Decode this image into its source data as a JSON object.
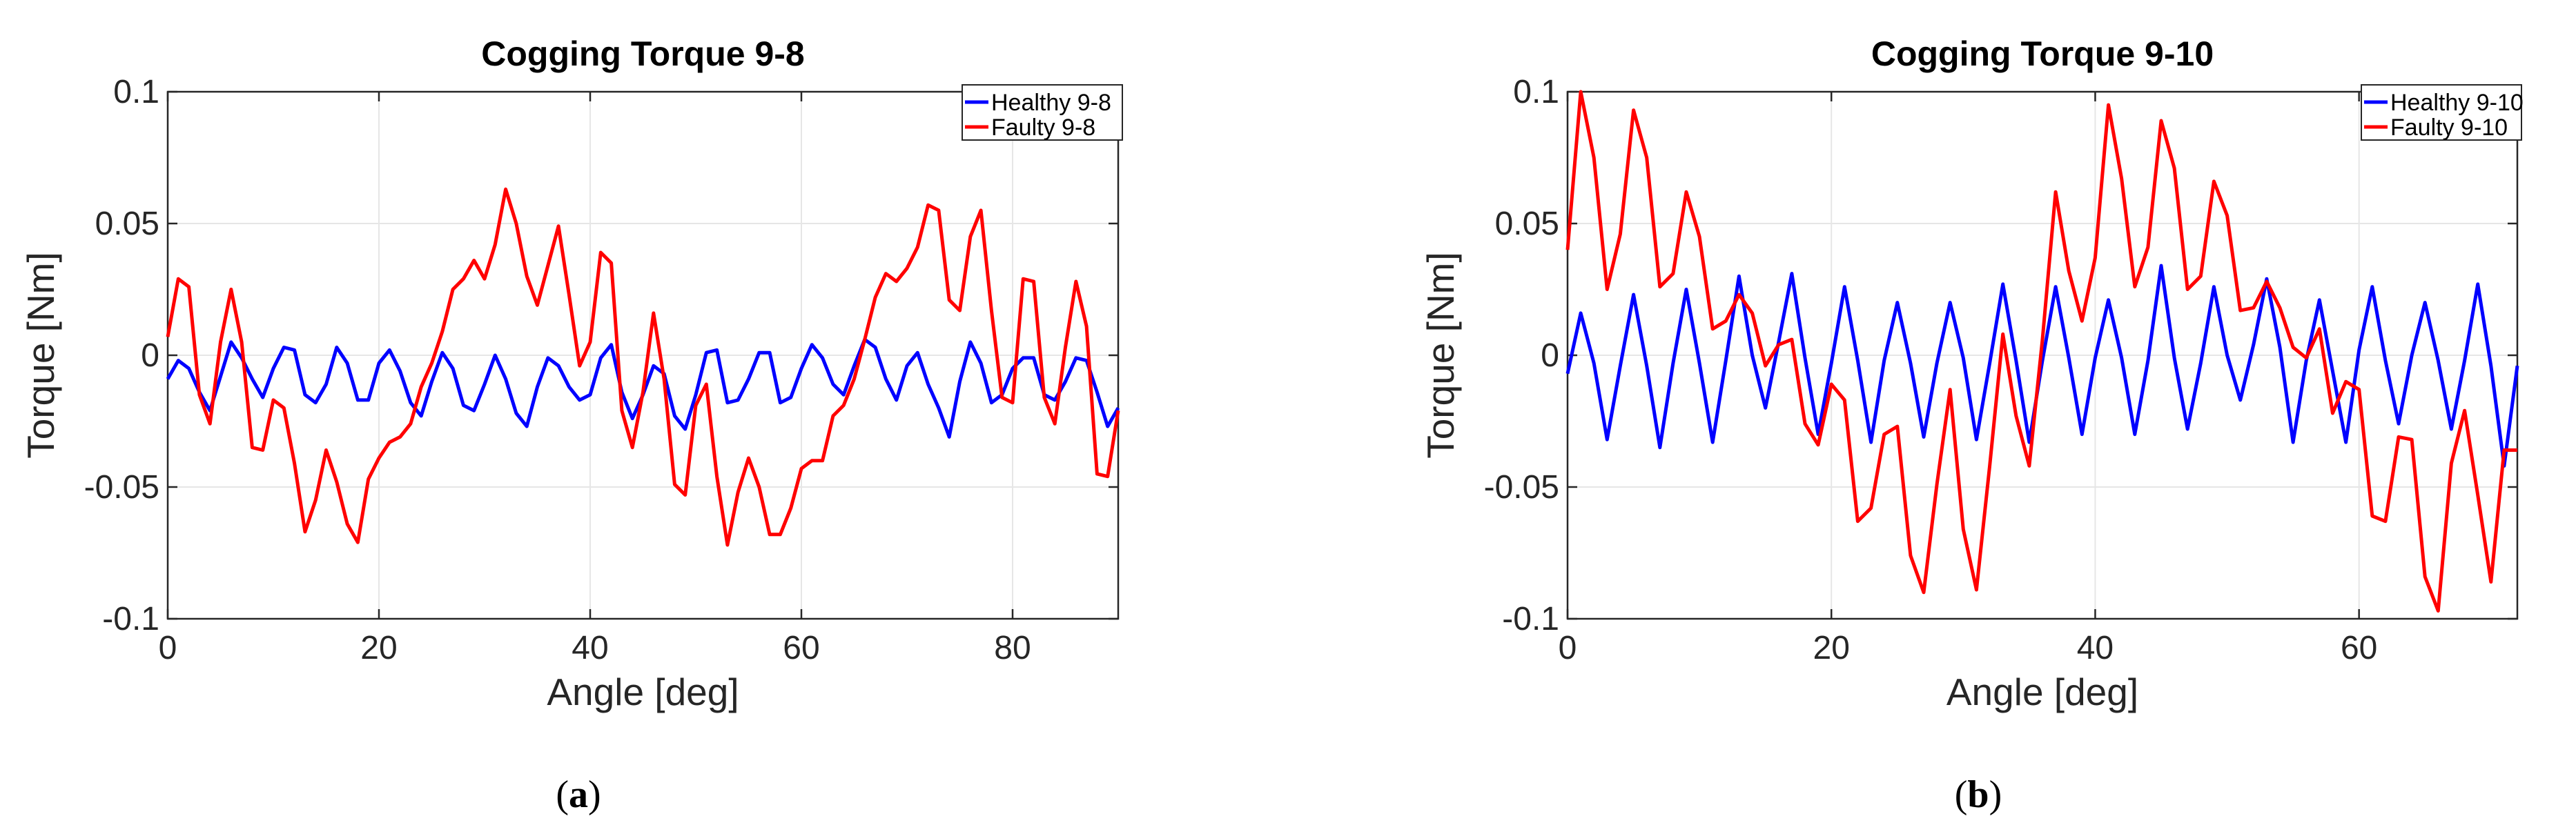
{
  "chart_data": [
    {
      "type": "line",
      "title": "Cogging Torque 9-8",
      "xlabel": "Angle [deg]",
      "ylabel": "Torque [Nm]",
      "xlim": [
        0,
        90
      ],
      "ylim": [
        -0.1,
        0.1
      ],
      "xticks": [
        0,
        20,
        40,
        60,
        80
      ],
      "xtick_labels": [
        "0",
        "20",
        "40",
        "60",
        "80"
      ],
      "yticks": [
        -0.1,
        -0.05,
        0,
        0.05,
        0.1
      ],
      "ytick_labels": [
        "-0.1",
        "-0.05",
        "0",
        "0.05",
        "0.1"
      ],
      "grid": true,
      "legend_position": "top-right",
      "caption_prefix": "(",
      "caption_letter": "a",
      "caption_suffix": ")",
      "series": [
        {
          "name": "Healthy 9-8",
          "color": "#0000ff",
          "x": [
            0,
            1,
            2,
            3,
            4,
            5,
            6,
            7,
            8,
            9,
            10,
            11,
            12,
            13,
            14,
            15,
            16,
            17,
            18,
            19,
            20,
            21,
            22,
            23,
            24,
            25,
            26,
            27,
            28,
            29,
            30,
            31,
            32,
            33,
            34,
            35,
            36,
            37,
            38,
            39,
            40,
            41,
            42,
            43,
            44,
            45,
            46,
            47,
            48,
            49,
            50,
            51,
            52,
            53,
            54,
            55,
            56,
            57,
            58,
            59,
            60,
            61,
            62,
            63,
            64,
            65,
            66,
            67,
            68,
            69,
            70,
            71,
            72,
            73,
            74,
            75,
            76,
            77,
            78,
            79,
            80,
            81,
            82,
            83,
            84,
            85,
            86,
            87,
            88,
            89,
            90
          ],
          "values": [
            -0.009,
            -0.002,
            -0.005,
            -0.014,
            -0.021,
            -0.008,
            0.005,
            -0.001,
            -0.009,
            -0.016,
            -0.005,
            0.003,
            0.002,
            -0.015,
            -0.018,
            -0.011,
            0.003,
            -0.003,
            -0.017,
            -0.017,
            -0.003,
            0.002,
            -0.006,
            -0.018,
            -0.023,
            -0.01,
            0.001,
            -0.005,
            -0.019,
            -0.021,
            -0.011,
            0.0,
            -0.009,
            -0.022,
            -0.027,
            -0.012,
            -0.001,
            -0.004,
            -0.012,
            -0.017,
            -0.015,
            -0.001,
            0.004,
            -0.014,
            -0.024,
            -0.015,
            -0.004,
            -0.007,
            -0.023,
            -0.028,
            -0.015,
            0.001,
            0.002,
            -0.018,
            -0.017,
            -0.009,
            0.001,
            0.001,
            -0.018,
            -0.016,
            -0.005,
            0.004,
            -0.001,
            -0.011,
            -0.015,
            -0.004,
            0.006,
            0.003,
            -0.009,
            -0.017,
            -0.004,
            0.001,
            -0.011,
            -0.02,
            -0.031,
            -0.01,
            0.005,
            -0.003,
            -0.018,
            -0.015,
            -0.005,
            -0.001,
            -0.001,
            -0.015,
            -0.017,
            -0.01,
            -0.001,
            -0.002,
            -0.014,
            -0.027,
            -0.02
          ]
        },
        {
          "name": "Faulty 9-8",
          "color": "#ff0000",
          "x": [
            0,
            1,
            2,
            3,
            4,
            5,
            6,
            7,
            8,
            9,
            10,
            11,
            12,
            13,
            14,
            15,
            16,
            17,
            18,
            19,
            20,
            21,
            22,
            23,
            24,
            25,
            26,
            27,
            28,
            29,
            30,
            31,
            32,
            33,
            34,
            35,
            36,
            37,
            38,
            39,
            40,
            41,
            42,
            43,
            44,
            45,
            46,
            47,
            48,
            49,
            50,
            51,
            52,
            53,
            54,
            55,
            56,
            57,
            58,
            59,
            60,
            61,
            62,
            63,
            64,
            65,
            66,
            67,
            68,
            69,
            70,
            71,
            72,
            73,
            74,
            75,
            76,
            77,
            78,
            79,
            80,
            81,
            82,
            83,
            84,
            85,
            86,
            87,
            88,
            89,
            90
          ],
          "values": [
            0.007,
            0.029,
            0.026,
            -0.015,
            -0.026,
            0.005,
            0.025,
            0.005,
            -0.035,
            -0.036,
            -0.017,
            -0.02,
            -0.041,
            -0.067,
            -0.055,
            -0.036,
            -0.048,
            -0.064,
            -0.071,
            -0.047,
            -0.039,
            -0.033,
            -0.031,
            -0.026,
            -0.012,
            -0.003,
            0.009,
            0.025,
            0.029,
            0.036,
            0.029,
            0.042,
            0.063,
            0.05,
            0.03,
            0.019,
            0.034,
            0.049,
            0.023,
            -0.004,
            0.005,
            0.039,
            0.035,
            -0.021,
            -0.035,
            -0.014,
            0.016,
            -0.009,
            -0.049,
            -0.053,
            -0.019,
            -0.011,
            -0.046,
            -0.072,
            -0.052,
            -0.039,
            -0.05,
            -0.068,
            -0.068,
            -0.058,
            -0.043,
            -0.04,
            -0.04,
            -0.023,
            -0.019,
            -0.009,
            0.006,
            0.022,
            0.031,
            0.028,
            0.033,
            0.041,
            0.057,
            0.055,
            0.021,
            0.017,
            0.045,
            0.055,
            0.017,
            -0.016,
            -0.018,
            0.029,
            0.028,
            -0.016,
            -0.026,
            0.003,
            0.028,
            0.011,
            -0.045,
            -0.046,
            -0.021
          ]
        }
      ]
    },
    {
      "type": "line",
      "title": "Cogging Torque 9-10",
      "xlabel": "Angle [deg]",
      "ylabel": "Torque [Nm]",
      "xlim": [
        0,
        72
      ],
      "ylim": [
        -0.1,
        0.1
      ],
      "xticks": [
        0,
        20,
        40,
        60
      ],
      "xtick_labels": [
        "0",
        "20",
        "40",
        "60"
      ],
      "yticks": [
        -0.1,
        -0.05,
        0,
        0.05,
        0.1
      ],
      "ytick_labels": [
        "-0.1",
        "-0.05",
        "0",
        "0.05",
        "0.1"
      ],
      "grid": true,
      "legend_position": "top-right",
      "caption_prefix": "(",
      "caption_letter": "b",
      "caption_suffix": ")",
      "series": [
        {
          "name": "Healthy 9-10",
          "color": "#0000ff",
          "x": [
            0,
            1,
            2,
            3,
            4,
            5,
            6,
            7,
            8,
            9,
            10,
            11,
            12,
            13,
            14,
            15,
            16,
            17,
            18,
            19,
            20,
            21,
            22,
            23,
            24,
            25,
            26,
            27,
            28,
            29,
            30,
            31,
            32,
            33,
            34,
            35,
            36,
            37,
            38,
            39,
            40,
            41,
            42,
            43,
            44,
            45,
            46,
            47,
            48,
            49,
            50,
            51,
            52,
            53,
            54,
            55,
            56,
            57,
            58,
            59,
            60,
            61,
            62,
            63,
            64,
            65,
            66,
            67,
            68,
            69,
            70,
            71,
            72
          ],
          "values": [
            -0.007,
            0.016,
            -0.003,
            -0.032,
            -0.004,
            0.023,
            -0.004,
            -0.035,
            -0.003,
            0.025,
            -0.003,
            -0.033,
            -0.002,
            0.03,
            0.0,
            -0.02,
            0.005,
            0.031,
            -0.001,
            -0.03,
            -0.003,
            0.026,
            -0.002,
            -0.033,
            -0.002,
            0.02,
            -0.003,
            -0.031,
            -0.003,
            0.02,
            -0.001,
            -0.032,
            -0.003,
            0.027,
            -0.002,
            -0.033,
            -0.002,
            0.026,
            -0.001,
            -0.03,
            -0.001,
            0.021,
            -0.001,
            -0.03,
            -0.002,
            0.034,
            -0.001,
            -0.028,
            -0.003,
            0.026,
            0.0,
            -0.017,
            0.004,
            0.029,
            0.003,
            -0.033,
            -0.002,
            0.021,
            -0.006,
            -0.033,
            0.002,
            0.026,
            -0.002,
            -0.026,
            0.0,
            0.02,
            -0.002,
            -0.028,
            -0.002,
            0.027,
            -0.004,
            -0.042,
            -0.004
          ]
        },
        {
          "name": "Faulty 9-10",
          "color": "#ff0000",
          "x": [
            0,
            1,
            2,
            3,
            4,
            5,
            6,
            7,
            8,
            9,
            10,
            11,
            12,
            13,
            14,
            15,
            16,
            17,
            18,
            19,
            20,
            21,
            22,
            23,
            24,
            25,
            26,
            27,
            28,
            29,
            30,
            31,
            32,
            33,
            34,
            35,
            36,
            37,
            38,
            39,
            40,
            41,
            42,
            43,
            44,
            45,
            46,
            47,
            48,
            49,
            50,
            51,
            52,
            53,
            54,
            55,
            56,
            57,
            58,
            59,
            60,
            61,
            62,
            63,
            64,
            65,
            66,
            67,
            68,
            69,
            70,
            71,
            72
          ],
          "values": [
            0.04,
            0.1,
            0.075,
            0.025,
            0.046,
            0.093,
            0.075,
            0.026,
            0.031,
            0.062,
            0.045,
            0.01,
            0.013,
            0.023,
            0.016,
            -0.004,
            0.004,
            0.006,
            -0.026,
            -0.034,
            -0.011,
            -0.017,
            -0.063,
            -0.058,
            -0.03,
            -0.027,
            -0.076,
            -0.09,
            -0.049,
            -0.013,
            -0.066,
            -0.089,
            -0.042,
            0.008,
            -0.023,
            -0.042,
            0.006,
            0.062,
            0.032,
            0.013,
            0.037,
            0.095,
            0.067,
            0.026,
            0.041,
            0.089,
            0.071,
            0.025,
            0.03,
            0.066,
            0.053,
            0.017,
            0.018,
            0.028,
            0.018,
            0.003,
            -0.001,
            0.01,
            -0.022,
            -0.01,
            -0.013,
            -0.061,
            -0.063,
            -0.031,
            -0.032,
            -0.084,
            -0.097,
            -0.041,
            -0.021,
            -0.053,
            -0.086,
            -0.036,
            -0.036
          ]
        }
      ]
    }
  ]
}
